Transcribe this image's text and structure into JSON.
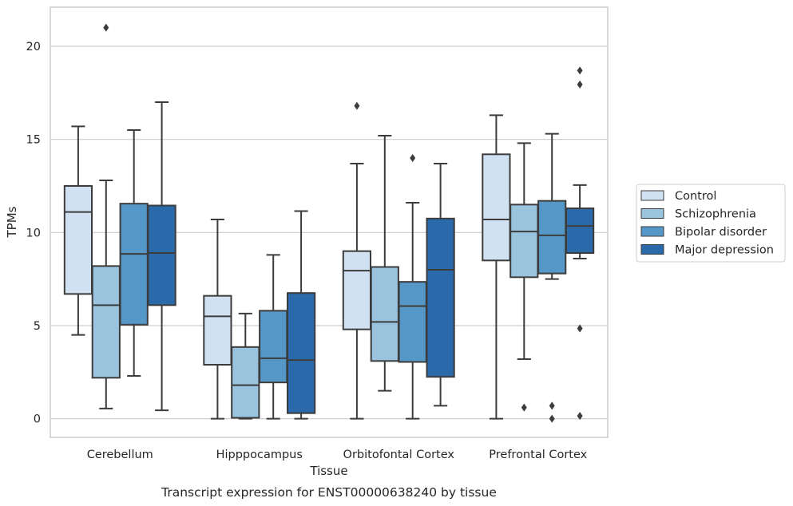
{
  "chart_data": {
    "type": "box",
    "caption": "Transcript expression for ENST00000638240 by tissue",
    "xlabel": "Tissue",
    "ylabel": "TPMs",
    "ylim": [
      -1,
      22.1
    ],
    "yticks": [
      0,
      5,
      10,
      15,
      20
    ],
    "grid": "horizontal",
    "legend_position": "right",
    "categories": [
      "Cerebellum",
      "Hipppocampus",
      "Orbitofontal Cortex",
      "Prefrontal Cortex"
    ],
    "series": [
      {
        "name": "Control",
        "color": "#d0e1f2",
        "boxes": [
          {
            "whisker_low": 4.5,
            "q1": 6.7,
            "median": 11.1,
            "q3": 12.5,
            "whisker_high": 15.7,
            "outliers": []
          },
          {
            "whisker_low": 0,
            "q1": 2.9,
            "median": 5.5,
            "q3": 6.6,
            "whisker_high": 10.7,
            "outliers": []
          },
          {
            "whisker_low": 0,
            "q1": 4.8,
            "median": 7.95,
            "q3": 9.0,
            "whisker_high": 13.7,
            "outliers": [
              16.8
            ]
          },
          {
            "whisker_low": 0,
            "q1": 8.5,
            "median": 10.7,
            "q3": 14.2,
            "whisker_high": 16.3,
            "outliers": []
          }
        ]
      },
      {
        "name": "Schizophrenia",
        "color": "#9ac3dd",
        "boxes": [
          {
            "whisker_low": 0.55,
            "q1": 2.2,
            "median": 6.1,
            "q3": 8.2,
            "whisker_high": 12.8,
            "outliers": [
              21.0
            ]
          },
          {
            "whisker_low": 0,
            "q1": 0.05,
            "median": 1.8,
            "q3": 3.85,
            "whisker_high": 5.65,
            "outliers": []
          },
          {
            "whisker_low": 1.5,
            "q1": 3.1,
            "median": 5.2,
            "q3": 8.15,
            "whisker_high": 15.2,
            "outliers": []
          },
          {
            "whisker_low": 3.2,
            "q1": 7.6,
            "median": 10.05,
            "q3": 11.5,
            "whisker_high": 14.8,
            "outliers": [
              0.6
            ]
          }
        ]
      },
      {
        "name": "Bipolar disorder",
        "color": "#5597c6",
        "boxes": [
          {
            "whisker_low": 2.3,
            "q1": 5.05,
            "median": 8.85,
            "q3": 11.55,
            "whisker_high": 15.5,
            "outliers": []
          },
          {
            "whisker_low": 0,
            "q1": 1.95,
            "median": 3.25,
            "q3": 5.8,
            "whisker_high": 8.8,
            "outliers": []
          },
          {
            "whisker_low": 0,
            "q1": 3.05,
            "median": 6.05,
            "q3": 7.35,
            "whisker_high": 11.6,
            "outliers": [
              14.0
            ]
          },
          {
            "whisker_low": 7.5,
            "q1": 7.8,
            "median": 9.85,
            "q3": 11.7,
            "whisker_high": 15.3,
            "outliers": [
              0.7,
              0.0
            ]
          }
        ]
      },
      {
        "name": "Major depression",
        "color": "#2a6aab",
        "boxes": [
          {
            "whisker_low": 0.45,
            "q1": 6.1,
            "median": 8.9,
            "q3": 11.45,
            "whisker_high": 17.0,
            "outliers": []
          },
          {
            "whisker_low": 0,
            "q1": 0.3,
            "median": 3.15,
            "q3": 6.75,
            "whisker_high": 11.15,
            "outliers": []
          },
          {
            "whisker_low": 0.7,
            "q1": 2.25,
            "median": 8.0,
            "q3": 10.75,
            "whisker_high": 13.7,
            "outliers": []
          },
          {
            "whisker_low": 8.6,
            "q1": 8.9,
            "median": 10.35,
            "q3": 11.3,
            "whisker_high": 12.55,
            "outliers": [
              18.7,
              17.95,
              4.85,
              0.15
            ]
          }
        ]
      }
    ]
  }
}
